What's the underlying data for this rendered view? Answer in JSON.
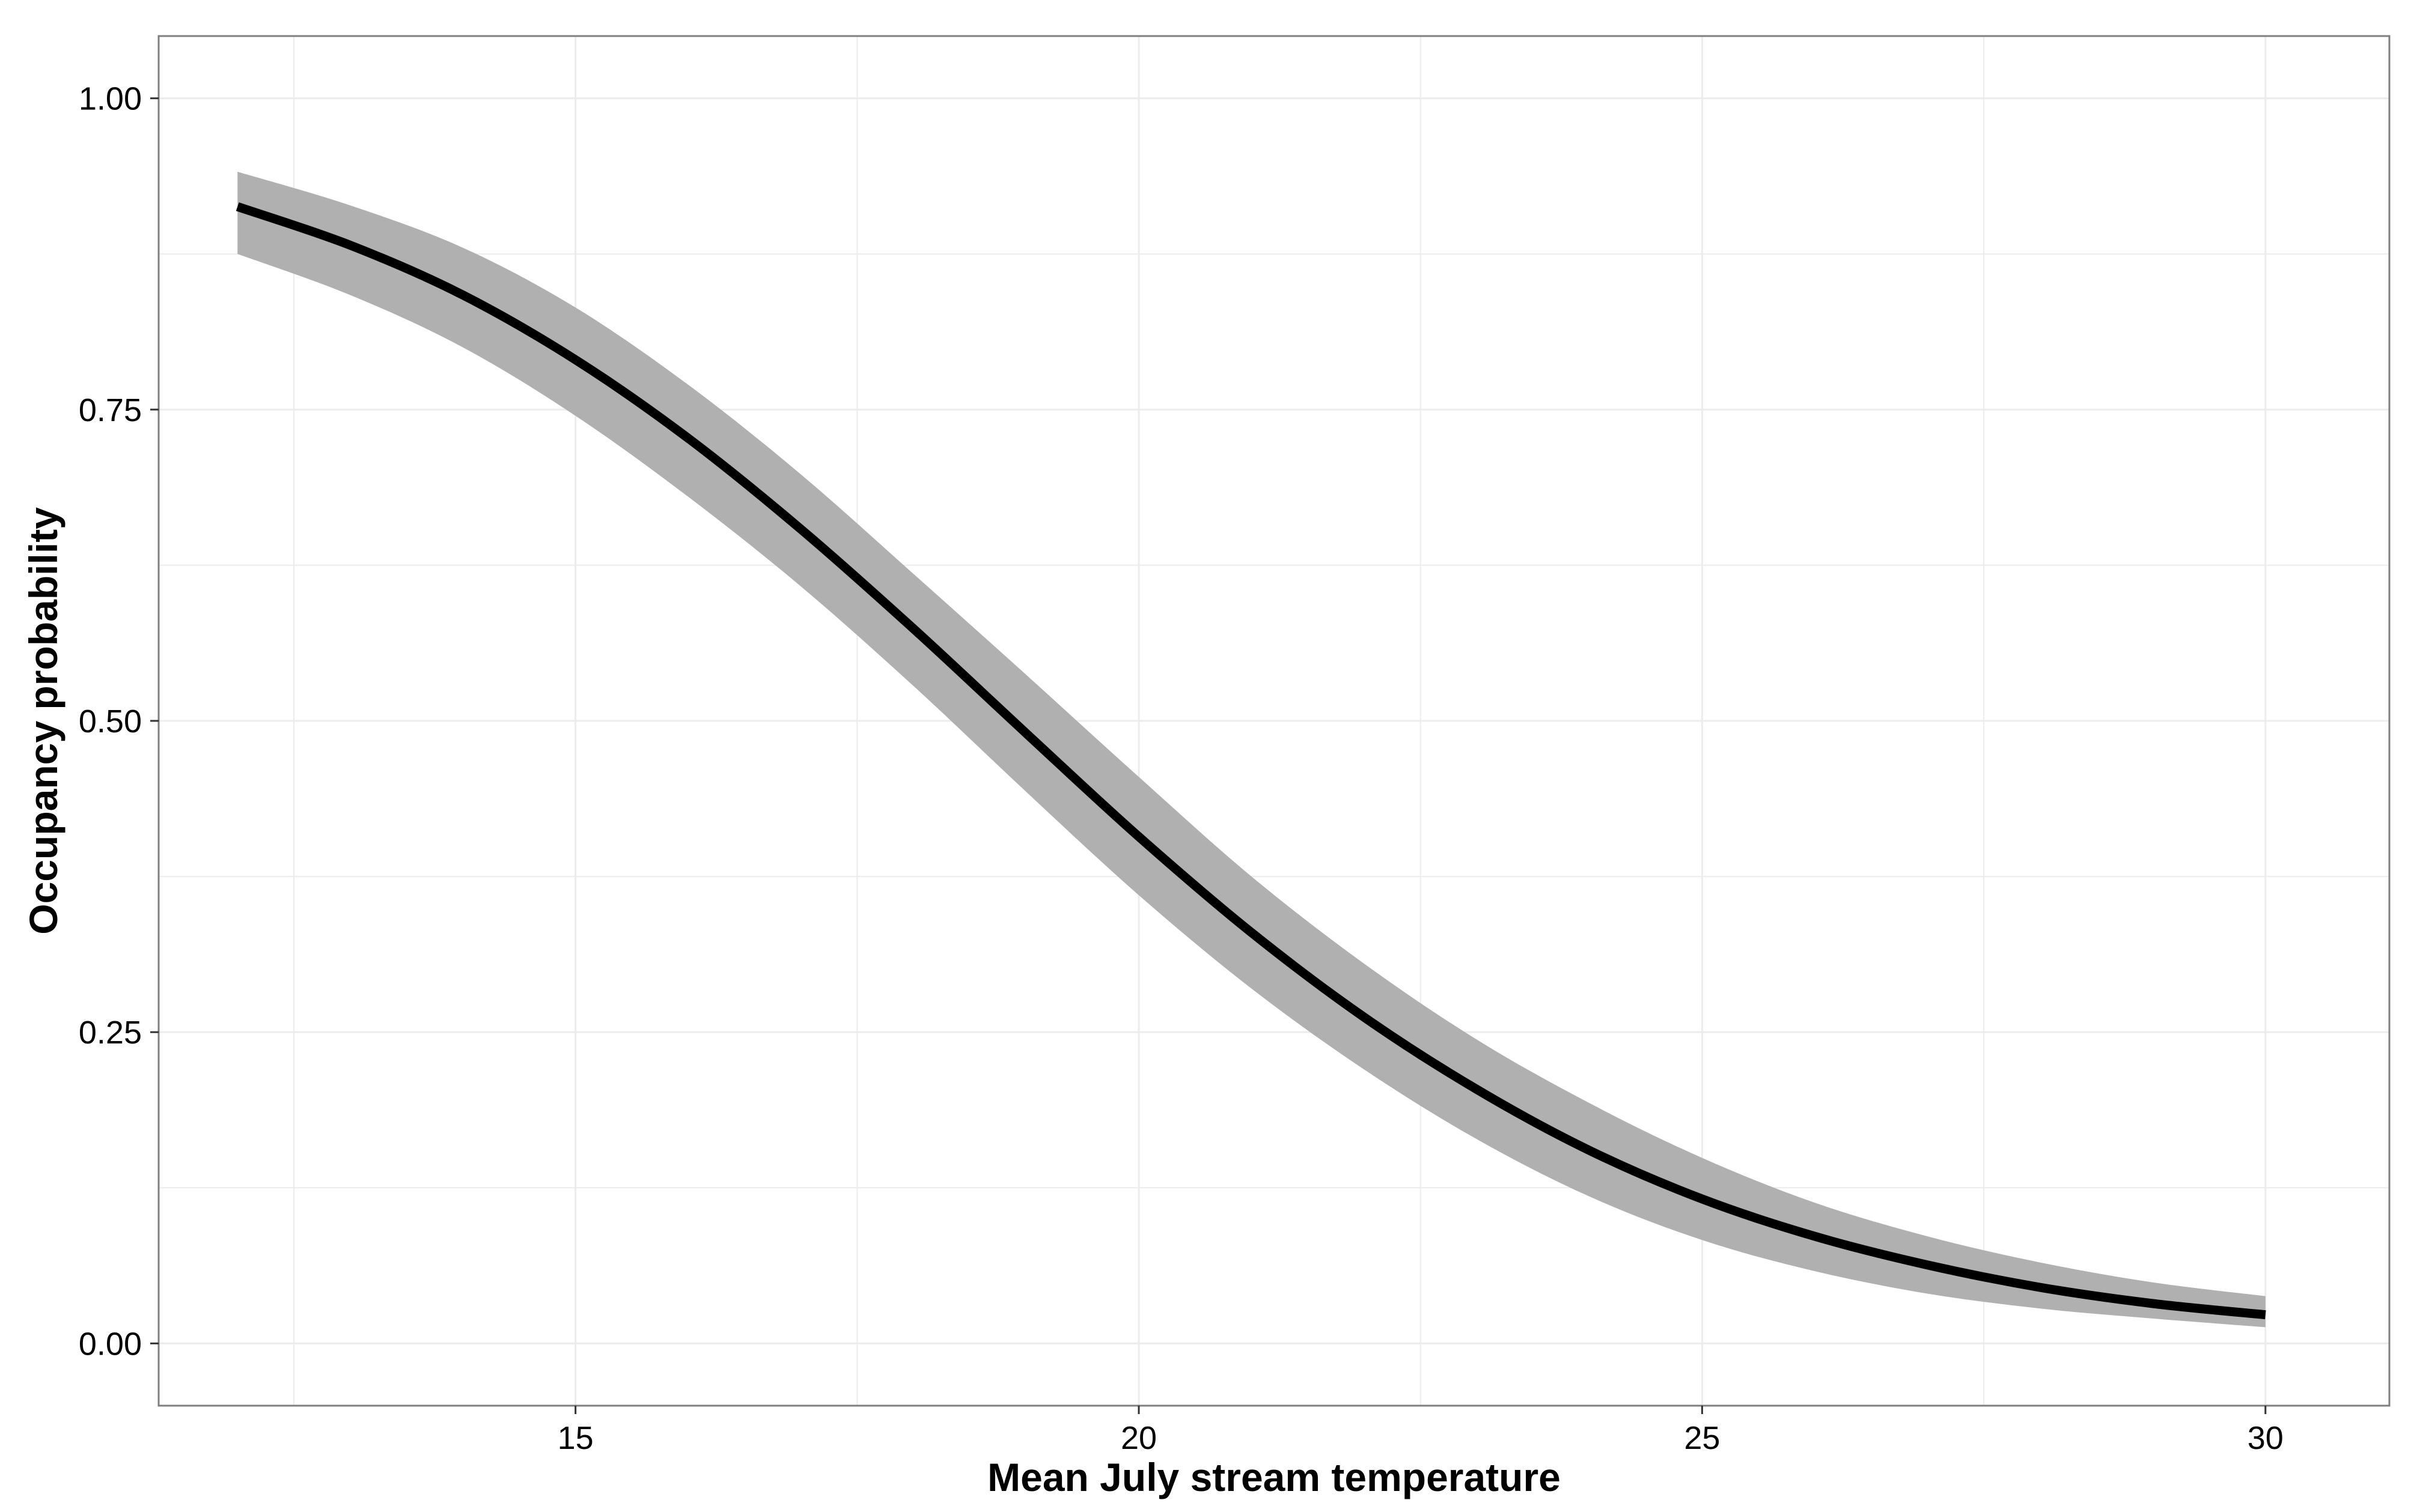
{
  "chart_data": {
    "type": "line",
    "title": "",
    "xlabel": "Mean July stream temperature",
    "ylabel": "Occupancy probability",
    "xlim": [
      11.3,
      31.1
    ],
    "ylim": [
      -0.05,
      1.05
    ],
    "x_ticks": [
      {
        "value": 15,
        "label": "15"
      },
      {
        "value": 20,
        "label": "20"
      },
      {
        "value": 25,
        "label": "25"
      },
      {
        "value": 30,
        "label": "30"
      }
    ],
    "y_ticks": [
      {
        "value": 0,
        "label": "0.00"
      },
      {
        "value": 0.25,
        "label": "0.25"
      },
      {
        "value": 0.5,
        "label": "0.50"
      },
      {
        "value": 0.75,
        "label": "0.75"
      },
      {
        "value": 1,
        "label": "1.00"
      }
    ],
    "x_minor_ticks": [
      12.5,
      17.5,
      22.5,
      27.5
    ],
    "y_minor_ticks": [
      0.125,
      0.375,
      0.625,
      0.875
    ],
    "grid": true,
    "legend": "none",
    "colors": {
      "line": "#000000",
      "ribbon": "#b0b0b0",
      "grid": "#ececec",
      "panel_border": "#7f7f7f"
    },
    "series": [
      {
        "x": [
          12,
          13,
          14,
          15,
          16,
          17,
          18,
          19,
          20,
          21,
          22,
          23,
          24,
          25,
          26,
          27,
          28,
          29,
          30
        ],
        "values": [
          0.913,
          0.882,
          0.842,
          0.79,
          0.727,
          0.654,
          0.574,
          0.49,
          0.407,
          0.33,
          0.262,
          0.204,
          0.155,
          0.116,
          0.086,
          0.063,
          0.045,
          0.032,
          0.023
        ],
        "lower": [
          0.875,
          0.842,
          0.8,
          0.745,
          0.68,
          0.608,
          0.528,
          0.443,
          0.36,
          0.285,
          0.22,
          0.164,
          0.118,
          0.083,
          0.058,
          0.04,
          0.028,
          0.02,
          0.013
        ],
        "upper": [
          0.941,
          0.914,
          0.88,
          0.832,
          0.77,
          0.698,
          0.618,
          0.537,
          0.455,
          0.375,
          0.305,
          0.244,
          0.193,
          0.149,
          0.113,
          0.086,
          0.065,
          0.049,
          0.038
        ]
      }
    ]
  }
}
